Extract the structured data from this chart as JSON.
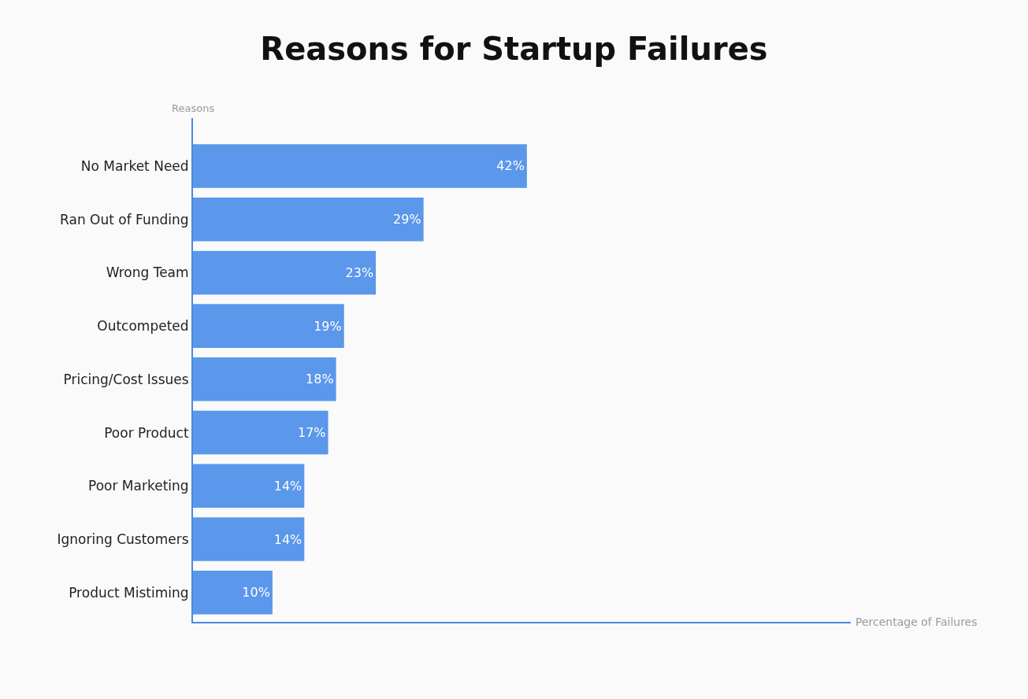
{
  "chart_data": {
    "type": "bar",
    "orientation": "horizontal",
    "title": "Reasons for Startup Failures",
    "ylabel": "Reasons",
    "annotations": [
      "Percentage of Failures"
    ],
    "categories": [
      "No Market Need",
      "Ran Out of Funding",
      "Wrong Team",
      "Outcompeted",
      "Pricing/Cost Issues",
      "Poor Product",
      "Poor Marketing",
      "Ignoring Customers",
      "Product Mistiming"
    ],
    "values": [
      42,
      29,
      23,
      19,
      18,
      17,
      14,
      14,
      10
    ],
    "value_labels": [
      "42%",
      "29%",
      "23%",
      "19%",
      "18%",
      "17%",
      "14%",
      "14%",
      "10%"
    ],
    "color": "#5b97ea"
  }
}
